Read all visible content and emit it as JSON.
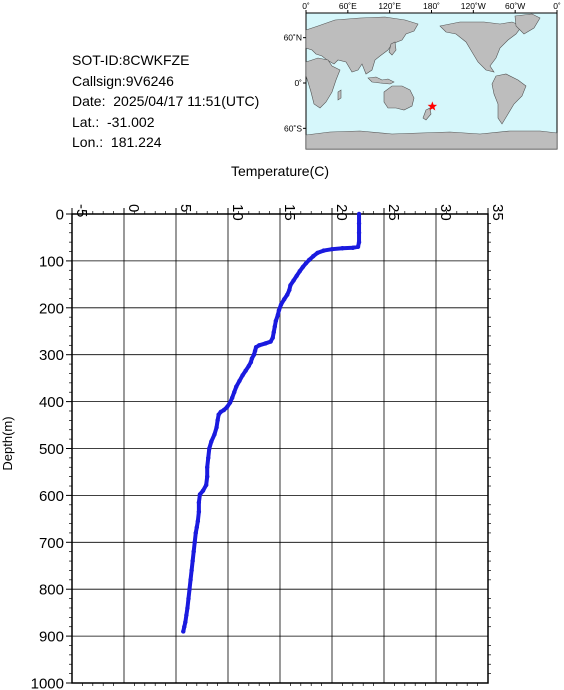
{
  "info": {
    "sot_id": "SOT-ID:8CWKFZE",
    "callsign": "Callsign:9V6246",
    "date": "Date:  2025/04/17 11:51(UTC)",
    "lat": "Lat.:  -31.002",
    "lon": "Lon.:  181.224"
  },
  "map": {
    "lon_labels": [
      "0˚",
      "60˚E",
      "120˚E",
      "180˚",
      "120˚W",
      "60˚W",
      "0˚"
    ],
    "lat_labels": [
      "60˚N",
      "0˚",
      "60˚S"
    ],
    "marker": {
      "lat": -31.002,
      "lon": 181.224
    },
    "colors": {
      "ocean": "#d6f7fb",
      "land": "#bdbdbd",
      "marker": "#ff0000"
    }
  },
  "chart_data": {
    "type": "line",
    "xlabel": "Temperature(C)",
    "ylabel": "Depth(m)",
    "xlim": [
      -5,
      35
    ],
    "ylim": [
      1000,
      0
    ],
    "x_ticks": [
      "-5",
      "0",
      "5",
      "10",
      "15",
      "20",
      "25",
      "30",
      "35"
    ],
    "y_ticks": [
      "0",
      "100",
      "200",
      "300",
      "400",
      "500",
      "600",
      "700",
      "800",
      "900",
      "1000"
    ],
    "grid": true,
    "line_color": "#1a1adf",
    "series": [
      {
        "points": [
          [
            22.6,
            0
          ],
          [
            22.6,
            20
          ],
          [
            22.6,
            40
          ],
          [
            22.6,
            60
          ],
          [
            22.5,
            70
          ],
          [
            22.0,
            72
          ],
          [
            21.0,
            73
          ],
          [
            20.0,
            75
          ],
          [
            19.2,
            78
          ],
          [
            18.6,
            83
          ],
          [
            18.2,
            90
          ],
          [
            17.8,
            98
          ],
          [
            17.5,
            105
          ],
          [
            17.2,
            113
          ],
          [
            16.9,
            122
          ],
          [
            16.6,
            132
          ],
          [
            16.3,
            142
          ],
          [
            16.0,
            152
          ],
          [
            15.9,
            162
          ],
          [
            15.7,
            172
          ],
          [
            15.4,
            182
          ],
          [
            15.1,
            193
          ],
          [
            14.9,
            205
          ],
          [
            14.8,
            215
          ],
          [
            14.6,
            228
          ],
          [
            14.5,
            240
          ],
          [
            14.4,
            252
          ],
          [
            14.3,
            264
          ],
          [
            14.1,
            272
          ],
          [
            13.6,
            276
          ],
          [
            13.0,
            280
          ],
          [
            12.7,
            284
          ],
          [
            12.6,
            292
          ],
          [
            12.5,
            300
          ],
          [
            12.3,
            308
          ],
          [
            12.2,
            316
          ],
          [
            12.0,
            324
          ],
          [
            11.7,
            334
          ],
          [
            11.4,
            344
          ],
          [
            11.1,
            356
          ],
          [
            10.8,
            368
          ],
          [
            10.6,
            380
          ],
          [
            10.4,
            392
          ],
          [
            10.2,
            402
          ],
          [
            9.9,
            412
          ],
          [
            9.6,
            418
          ],
          [
            9.3,
            422
          ],
          [
            9.1,
            428
          ],
          [
            9.0,
            440
          ],
          [
            8.9,
            455
          ],
          [
            8.7,
            470
          ],
          [
            8.4,
            485
          ],
          [
            8.2,
            500
          ],
          [
            8.1,
            520
          ],
          [
            8.0,
            540
          ],
          [
            8.0,
            560
          ],
          [
            7.9,
            578
          ],
          [
            7.6,
            590
          ],
          [
            7.3,
            598
          ],
          [
            7.2,
            615
          ],
          [
            7.2,
            635
          ],
          [
            7.1,
            655
          ],
          [
            7.0,
            668
          ],
          [
            6.9,
            680
          ],
          [
            6.8,
            700
          ],
          [
            6.7,
            720
          ],
          [
            6.6,
            740
          ],
          [
            6.5,
            760
          ],
          [
            6.4,
            780
          ],
          [
            6.3,
            800
          ],
          [
            6.2,
            820
          ],
          [
            6.1,
            840
          ],
          [
            6.0,
            855
          ],
          [
            5.9,
            870
          ],
          [
            5.8,
            880
          ],
          [
            5.7,
            890
          ]
        ]
      }
    ]
  }
}
